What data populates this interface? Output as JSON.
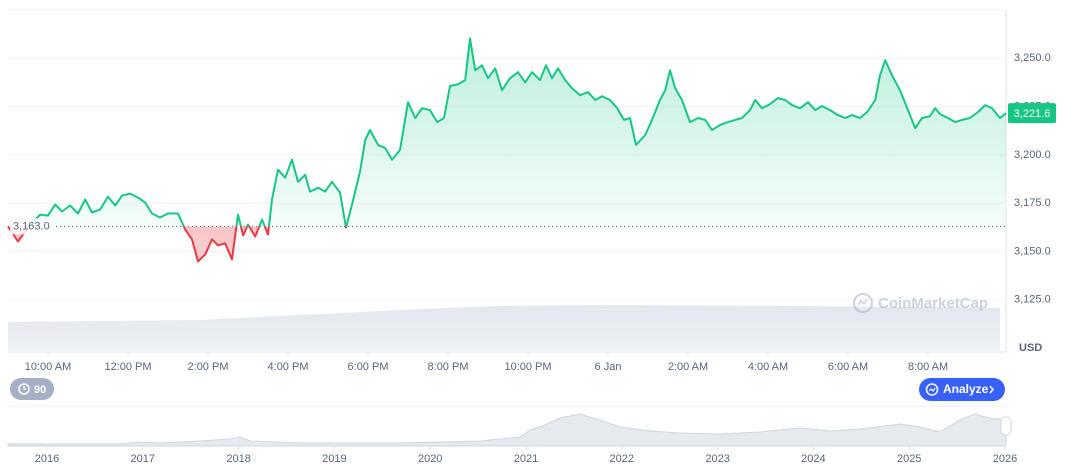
{
  "chart_data": {
    "type": "line",
    "x": [
      9.0,
      9.25,
      9.5,
      9.8,
      10.0,
      10.18,
      10.35,
      10.55,
      10.75,
      10.93,
      11.1,
      11.3,
      11.5,
      11.68,
      11.85,
      12.05,
      12.25,
      12.43,
      12.6,
      12.8,
      13.0,
      13.25,
      13.43,
      13.6,
      13.75,
      13.93,
      14.1,
      14.25,
      14.43,
      14.6,
      14.75,
      14.88,
      15.0,
      15.18,
      15.35,
      15.5,
      15.6,
      15.75,
      15.93,
      16.1,
      16.25,
      16.43,
      16.55,
      16.75,
      16.93,
      17.1,
      17.3,
      17.45,
      17.6,
      17.8,
      17.93,
      18.05,
      18.25,
      18.43,
      18.6,
      18.8,
      19.0,
      19.18,
      19.35,
      19.55,
      19.73,
      19.9,
      20.05,
      20.25,
      20.43,
      20.55,
      20.68,
      20.85,
      21.0,
      21.18,
      21.35,
      21.55,
      21.75,
      21.93,
      22.1,
      22.3,
      22.45,
      22.6,
      22.75,
      22.93,
      23.1,
      23.3,
      23.5,
      23.68,
      23.85,
      24.05,
      24.23,
      24.4,
      24.55,
      24.7,
      24.93,
      25.1,
      25.3,
      25.43,
      25.55,
      25.68,
      25.85,
      26.05,
      26.25,
      26.43,
      26.6,
      26.8,
      27.0,
      27.18,
      27.35,
      27.55,
      27.68,
      27.85,
      28.05,
      28.25,
      28.43,
      28.6,
      28.8,
      29.0,
      29.18,
      29.35,
      29.55,
      29.75,
      29.93,
      30.1,
      30.3,
      30.48,
      30.68,
      30.8,
      30.93,
      31.1,
      31.3,
      31.5,
      31.68,
      31.85,
      32.05,
      32.18,
      32.3,
      32.5,
      32.68,
      32.85,
      33.05,
      33.25,
      33.43,
      33.6,
      33.8,
      33.95
    ],
    "values": [
      3163.0,
      3155.2,
      3162.4,
      3169.1,
      3168.6,
      3174.3,
      3170.7,
      3173.8,
      3169.7,
      3176.9,
      3170.2,
      3171.7,
      3178.4,
      3173.8,
      3178.9,
      3180,
      3177.9,
      3175.3,
      3169.7,
      3167.6,
      3169.7,
      3169.7,
      3161.4,
      3156.3,
      3144.9,
      3148.5,
      3156.3,
      3153.2,
      3154.2,
      3146,
      3169.1,
      3158.3,
      3164,
      3157.8,
      3166.6,
      3158.8,
      3176.9,
      3192.3,
      3188.2,
      3197.5,
      3186.1,
      3189.7,
      3181,
      3183,
      3181,
      3186.1,
      3180.5,
      3162.4,
      3174.3,
      3191.3,
      3207.8,
      3212.9,
      3205.2,
      3203.6,
      3197.5,
      3202.6,
      3227.3,
      3219.1,
      3224.2,
      3223.2,
      3217,
      3219.1,
      3235.6,
      3236.6,
      3238.7,
      3260.3,
      3243.8,
      3246.4,
      3239.7,
      3244.8,
      3233.5,
      3239.7,
      3242.8,
      3237.6,
      3242.8,
      3238.7,
      3246.4,
      3239.7,
      3244.8,
      3238.7,
      3234.5,
      3230.9,
      3232.5,
      3228.4,
      3230.4,
      3228.4,
      3224.2,
      3218.1,
      3219.1,
      3205.2,
      3210.3,
      3218.1,
      3228.4,
      3233.5,
      3243.8,
      3234.5,
      3228.4,
      3217,
      3219.1,
      3218.1,
      3212.9,
      3215.5,
      3217,
      3218.1,
      3219.1,
      3223.2,
      3228.4,
      3224.2,
      3226.3,
      3229.4,
      3228.4,
      3225.8,
      3224.2,
      3227.3,
      3223.2,
      3225.3,
      3223.2,
      3220.6,
      3219.1,
      3220.6,
      3219.1,
      3222.2,
      3228.4,
      3241.2,
      3249,
      3241.2,
      3233.5,
      3223.2,
      3213.9,
      3219.1,
      3220.1,
      3224.2,
      3221.1,
      3219.1,
      3217,
      3218.1,
      3219.1,
      3222.2,
      3225.8,
      3224.2,
      3219.1,
      3221.6
    ],
    "color": "#16c784",
    "below_color": "#ea3943",
    "baseline": {
      "value": 3163.0,
      "label": "3,163.0"
    },
    "last_price": {
      "value": 3221.6,
      "label": "3,221.6"
    },
    "xlim": [
      9.0,
      33.95
    ],
    "xticks": [
      {
        "value": 10,
        "label": "10:00 AM"
      },
      {
        "value": 12,
        "label": "12:00 PM"
      },
      {
        "value": 14,
        "label": "2:00 PM"
      },
      {
        "value": 16,
        "label": "4:00 PM"
      },
      {
        "value": 18,
        "label": "6:00 PM"
      },
      {
        "value": 20,
        "label": "8:00 PM"
      },
      {
        "value": 22,
        "label": "10:00 PM"
      },
      {
        "value": 24,
        "label": "6 Jan"
      },
      {
        "value": 26,
        "label": "2:00 AM"
      },
      {
        "value": 28,
        "label": "4:00 AM"
      },
      {
        "value": 30,
        "label": "6:00 AM"
      },
      {
        "value": 32,
        "label": "8:00 AM"
      }
    ],
    "ylim": [
      3098,
      3275
    ],
    "yticks": [
      {
        "value": 3125,
        "label": "3,125.0"
      },
      {
        "value": 3150,
        "label": "3,150.0"
      },
      {
        "value": 3175,
        "label": "3,175.0"
      },
      {
        "value": 3200,
        "label": "3,200.0"
      },
      {
        "value": 3225,
        "label": "3,225.0"
      },
      {
        "value": 3250,
        "label": "3,250.0"
      }
    ],
    "y_unit": "USD",
    "grid": true,
    "watermark": "CoinMarketCap"
  },
  "controls": {
    "range_button": "90",
    "analyze_button": "Analyze"
  },
  "navigator": {
    "years": [
      2016,
      2017,
      2018,
      2019,
      2020,
      2021,
      2022,
      2023,
      2024,
      2025,
      2026
    ]
  }
}
